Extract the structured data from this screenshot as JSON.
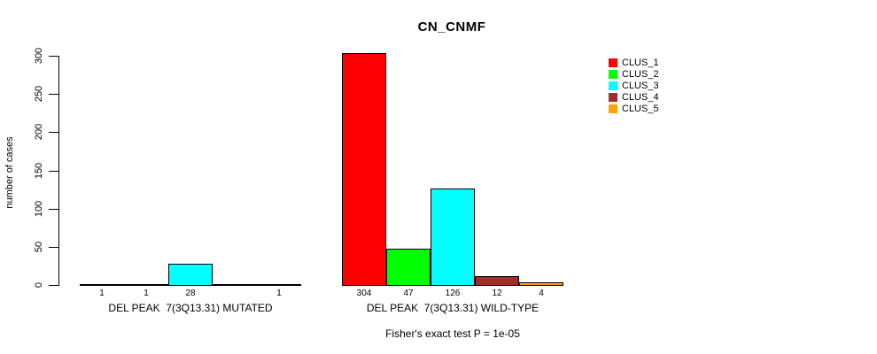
{
  "title": "CN_CNMF",
  "y_axis": {
    "label": "number of cases",
    "ticks": [
      0,
      50,
      100,
      150,
      200,
      250,
      300
    ]
  },
  "legend": {
    "items": [
      {
        "label": "CLUS_1",
        "color": "#FF0000"
      },
      {
        "label": "CLUS_2",
        "color": "#00FF00"
      },
      {
        "label": "CLUS_3",
        "color": "#00FFFF"
      },
      {
        "label": "CLUS_4",
        "color": "#A52A2A"
      },
      {
        "label": "CLUS_5",
        "color": "#FFA500"
      }
    ]
  },
  "footer": "Fisher's exact test P = 1e-05",
  "chart_data": {
    "type": "bar",
    "title": "CN_CNMF",
    "ylabel": "number of cases",
    "ylim": [
      0,
      304
    ],
    "yticks": [
      0,
      50,
      100,
      150,
      200,
      250,
      300
    ],
    "grid": false,
    "legend_position": "right",
    "series_names": [
      "CLUS_1",
      "CLUS_2",
      "CLUS_3",
      "CLUS_4",
      "CLUS_5"
    ],
    "series_colors": [
      "#FF0000",
      "#00FF00",
      "#00FFFF",
      "#A52A2A",
      "#FFA500"
    ],
    "groups": [
      {
        "label": "DEL PEAK  7(3Q13.31) MUTATED",
        "values": [
          1,
          1,
          28,
          0,
          1
        ],
        "count_labels": [
          "1",
          "1",
          "28",
          "",
          "1"
        ]
      },
      {
        "label": "DEL PEAK  7(3Q13.31) WILD-TYPE",
        "values": [
          304,
          47,
          126,
          12,
          4
        ],
        "count_labels": [
          "304",
          "47",
          "126",
          "12",
          "4"
        ]
      }
    ],
    "annotation": "Fisher's exact test P = 1e-05"
  }
}
